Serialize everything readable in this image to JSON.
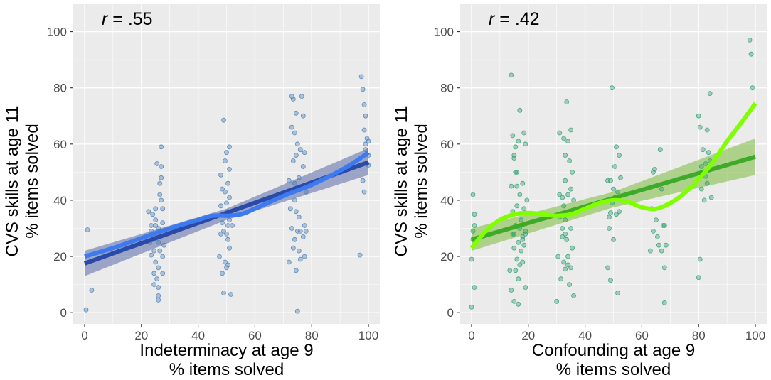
{
  "chart_data": [
    {
      "type": "scatter",
      "annotation": {
        "prefix": "r",
        "value": " = .55"
      },
      "xlabel": [
        "Indeterminacy at age 9",
        "% items solved"
      ],
      "ylabel": [
        "CVS skills at age 11",
        "% items solved"
      ],
      "xlim": [
        -4,
        104
      ],
      "ylim": [
        -4,
        110
      ],
      "xticks": [
        0,
        20,
        40,
        60,
        80,
        100
      ],
      "yticks": [
        0,
        20,
        40,
        60,
        80,
        100
      ],
      "tick_labels": {
        "x": [
          "0",
          "20",
          "40",
          "60",
          "80",
          "100"
        ],
        "y": [
          "0",
          "20",
          "40",
          "60",
          "80",
          "100"
        ]
      },
      "colors": {
        "points": "#4a7fb5",
        "linear": "#2a4aa8",
        "ribbon": "#5a6aa8",
        "loess": "#3d7af0"
      },
      "points": [
        [
          0.5,
          1
        ],
        [
          1,
          29.5
        ],
        [
          2.5,
          8
        ],
        [
          22.5,
          36
        ],
        [
          23,
          25
        ],
        [
          23.5,
          31
        ],
        [
          23.5,
          20.5
        ],
        [
          24,
          35
        ],
        [
          24.5,
          22
        ],
        [
          24.5,
          10
        ],
        [
          24.5,
          14
        ],
        [
          25,
          28
        ],
        [
          25,
          33
        ],
        [
          25,
          18
        ],
        [
          25.5,
          53
        ],
        [
          25.5,
          12
        ],
        [
          25,
          37
        ],
        [
          26,
          30
        ],
        [
          26,
          25
        ],
        [
          26,
          16
        ],
        [
          26,
          6
        ],
        [
          26.5,
          46
        ],
        [
          26.5,
          42
        ],
        [
          26.5,
          27
        ],
        [
          26.5,
          22
        ],
        [
          26,
          9
        ],
        [
          27,
          52
        ],
        [
          27,
          59
        ],
        [
          27,
          48
        ],
        [
          27,
          40
        ],
        [
          27.5,
          32
        ],
        [
          27.5,
          20
        ],
        [
          27.5,
          14
        ],
        [
          28,
          24
        ],
        [
          26,
          4.5
        ],
        [
          24,
          26
        ],
        [
          25,
          31
        ],
        [
          26.5,
          29
        ],
        [
          23.5,
          29
        ],
        [
          27.5,
          37
        ],
        [
          47.5,
          20
        ],
        [
          48,
          49
        ],
        [
          48,
          38
        ],
        [
          48.5,
          44
        ],
        [
          48.5,
          32
        ],
        [
          48.5,
          14
        ],
        [
          49,
          68.5
        ],
        [
          49,
          29
        ],
        [
          49,
          7
        ],
        [
          49.5,
          54
        ],
        [
          49.5,
          43
        ],
        [
          49.5,
          35
        ],
        [
          50,
          57
        ],
        [
          50,
          39
        ],
        [
          50,
          28
        ],
        [
          50,
          16
        ],
        [
          50.5,
          46
        ],
        [
          50.5,
          36
        ],
        [
          50.5,
          26
        ],
        [
          50.5,
          17
        ],
        [
          51,
          51
        ],
        [
          51,
          59
        ],
        [
          51,
          41
        ],
        [
          51,
          33
        ],
        [
          51,
          23
        ],
        [
          51.5,
          6.5
        ],
        [
          52,
          31
        ],
        [
          48,
          28
        ],
        [
          49.5,
          18
        ],
        [
          50.5,
          31
        ],
        [
          72,
          18
        ],
        [
          72,
          47
        ],
        [
          72.5,
          37
        ],
        [
          73,
          77
        ],
        [
          73,
          66
        ],
        [
          73,
          30
        ],
        [
          73.5,
          76
        ],
        [
          73.5,
          54
        ],
        [
          73.5,
          23
        ],
        [
          74,
          64
        ],
        [
          74,
          46
        ],
        [
          74,
          40
        ],
        [
          74,
          26
        ],
        [
          74.5,
          71
        ],
        [
          74.5,
          56
        ],
        [
          74.5,
          36
        ],
        [
          75,
          60
        ],
        [
          75,
          44
        ],
        [
          75,
          29
        ],
        [
          75,
          0.5
        ],
        [
          75.5,
          48
        ],
        [
          75.5,
          34
        ],
        [
          75.5,
          22
        ],
        [
          76,
          58
        ],
        [
          76,
          29
        ],
        [
          76,
          19
        ],
        [
          76.5,
          77
        ],
        [
          77,
          52
        ],
        [
          77,
          70
        ],
        [
          77,
          27
        ],
        [
          77.5,
          57
        ],
        [
          77.5,
          31
        ],
        [
          77.5,
          20
        ],
        [
          78,
          43
        ],
        [
          78,
          29
        ],
        [
          74.5,
          15
        ],
        [
          97,
          20.5
        ],
        [
          97.5,
          84
        ],
        [
          98,
          79.5
        ],
        [
          98,
          47
        ],
        [
          98.5,
          74
        ],
        [
          98.5,
          65
        ],
        [
          98.5,
          43
        ],
        [
          99,
          70
        ],
        [
          99,
          58
        ],
        [
          99.5,
          62
        ],
        [
          99.5,
          53
        ],
        [
          100,
          56
        ],
        [
          100,
          61
        ],
        [
          100,
          52.5
        ],
        [
          99,
          60
        ]
      ],
      "linear_fit": [
        [
          0,
          17.5
        ],
        [
          100,
          53.5
        ]
      ],
      "ribbon_upper": [
        [
          0,
          22
        ],
        [
          50,
          37
        ],
        [
          100,
          58.5
        ]
      ],
      "ribbon_lower": [
        [
          0,
          13
        ],
        [
          50,
          33
        ],
        [
          100,
          49
        ]
      ],
      "loess_fit": [
        [
          0,
          20
        ],
        [
          10,
          23
        ],
        [
          20,
          26.5
        ],
        [
          30,
          30
        ],
        [
          40,
          33
        ],
        [
          45,
          34.5
        ],
        [
          50,
          34.5
        ],
        [
          55,
          35
        ],
        [
          60,
          37
        ],
        [
          70,
          41.5
        ],
        [
          80,
          45.5
        ],
        [
          90,
          50.5
        ],
        [
          95,
          53.5
        ],
        [
          100,
          57
        ]
      ]
    },
    {
      "type": "scatter",
      "annotation": {
        "prefix": "r",
        "value": " = .42"
      },
      "xlabel": [
        "Confounding at age 9",
        "% items solved"
      ],
      "ylabel": [
        "CVS skills at age 11",
        "% items solved"
      ],
      "xlim": [
        -4,
        104
      ],
      "ylim": [
        -4,
        110
      ],
      "xticks": [
        0,
        20,
        40,
        60,
        80,
        100
      ],
      "yticks": [
        0,
        20,
        40,
        60,
        80,
        100
      ],
      "tick_labels": {
        "x": [
          "0",
          "20",
          "40",
          "60",
          "80",
          "100"
        ],
        "y": [
          "0",
          "20",
          "40",
          "60",
          "80",
          "100"
        ]
      },
      "colors": {
        "points": "#2e9e6e",
        "linear": "#3daa2a",
        "ribbon": "#7aba3a",
        "loess": "#7fff00"
      },
      "points": [
        [
          0,
          2
        ],
        [
          0,
          19
        ],
        [
          0.5,
          29
        ],
        [
          0.5,
          42
        ],
        [
          1,
          9
        ],
        [
          1,
          31
        ],
        [
          1,
          35
        ],
        [
          0.5,
          26
        ],
        [
          13.5,
          15
        ],
        [
          14,
          45
        ],
        [
          14,
          8
        ],
        [
          14,
          84.5
        ],
        [
          14.5,
          63
        ],
        [
          14.5,
          36
        ],
        [
          15,
          23
        ],
        [
          15,
          55
        ],
        [
          15,
          28
        ],
        [
          15,
          4
        ],
        [
          15.5,
          59
        ],
        [
          15.5,
          50
        ],
        [
          15.5,
          31
        ],
        [
          15.5,
          15
        ],
        [
          16,
          45
        ],
        [
          16,
          38
        ],
        [
          16,
          19
        ],
        [
          16,
          50
        ],
        [
          16.5,
          61
        ],
        [
          16.5,
          25
        ],
        [
          16.5,
          12
        ],
        [
          16.5,
          3
        ],
        [
          17,
          72
        ],
        [
          17,
          42
        ],
        [
          17,
          30
        ],
        [
          17.5,
          22
        ],
        [
          17.5,
          33
        ],
        [
          18,
          46
        ],
        [
          18,
          27
        ],
        [
          18,
          18
        ],
        [
          18.5,
          64
        ],
        [
          18.5,
          37
        ],
        [
          18.5,
          24
        ],
        [
          19,
          60
        ],
        [
          19,
          29
        ],
        [
          19,
          9
        ],
        [
          19.5,
          40
        ],
        [
          19,
          28
        ],
        [
          18,
          26
        ],
        [
          17,
          17
        ],
        [
          15,
          56
        ],
        [
          14.5,
          28
        ],
        [
          30,
          4
        ],
        [
          30.5,
          20
        ],
        [
          31,
          64
        ],
        [
          31,
          34
        ],
        [
          31,
          42
        ],
        [
          31.5,
          12
        ],
        [
          32,
          30
        ],
        [
          32,
          27
        ],
        [
          32.5,
          62
        ],
        [
          32.5,
          38
        ],
        [
          32.5,
          18
        ],
        [
          33,
          56
        ],
        [
          33,
          47
        ],
        [
          33,
          33
        ],
        [
          33,
          15.5
        ],
        [
          33.5,
          75
        ],
        [
          33.5,
          26
        ],
        [
          34,
          61
        ],
        [
          34,
          42
        ],
        [
          34,
          17
        ],
        [
          34.5,
          54
        ],
        [
          34.5,
          36
        ],
        [
          34.5,
          10
        ],
        [
          35,
          65
        ],
        [
          35,
          44
        ],
        [
          35,
          30
        ],
        [
          35,
          16
        ],
        [
          35.5,
          50
        ],
        [
          35.5,
          23
        ],
        [
          36,
          40
        ],
        [
          36,
          6
        ],
        [
          34,
          20
        ],
        [
          32,
          41
        ],
        [
          33,
          28
        ],
        [
          48,
          47
        ],
        [
          48,
          16
        ],
        [
          48.5,
          34
        ],
        [
          48.5,
          30
        ],
        [
          49,
          47
        ],
        [
          49,
          11.5
        ],
        [
          49.5,
          80
        ],
        [
          49.5,
          39
        ],
        [
          50,
          44
        ],
        [
          50,
          26
        ],
        [
          50.5,
          52
        ],
        [
          50.5,
          41
        ],
        [
          51,
          59
        ],
        [
          51,
          35
        ],
        [
          51.5,
          43
        ],
        [
          51.5,
          7
        ],
        [
          52,
          56
        ],
        [
          52,
          36
        ],
        [
          52.5,
          48
        ],
        [
          49,
          35.5
        ],
        [
          63,
          22
        ],
        [
          63.5,
          37
        ],
        [
          64,
          29
        ],
        [
          64,
          50
        ],
        [
          64.5,
          51
        ],
        [
          65,
          33
        ],
        [
          65.5,
          27
        ],
        [
          66,
          24
        ],
        [
          66.5,
          58
        ],
        [
          67,
          44
        ],
        [
          67,
          22
        ],
        [
          67.5,
          31
        ],
        [
          68,
          3.5
        ],
        [
          68,
          16
        ],
        [
          68.5,
          24
        ],
        [
          68,
          31
        ],
        [
          80,
          12.5
        ],
        [
          80,
          70
        ],
        [
          80.5,
          66
        ],
        [
          80.5,
          19
        ],
        [
          81,
          44
        ],
        [
          81,
          52
        ],
        [
          81.5,
          58
        ],
        [
          82,
          40
        ],
        [
          82.5,
          53
        ],
        [
          83,
          65
        ],
        [
          83,
          46
        ],
        [
          83.5,
          57
        ],
        [
          84,
          54
        ],
        [
          84,
          78
        ],
        [
          84.5,
          41
        ],
        [
          98,
          97
        ],
        [
          98.5,
          92
        ],
        [
          99,
          80
        ],
        [
          82.5,
          48.5
        ]
      ],
      "linear_fit": [
        [
          0,
          26
        ],
        [
          100,
          55.5
        ]
      ],
      "ribbon_upper": [
        [
          0,
          30
        ],
        [
          50,
          43
        ],
        [
          100,
          62
        ]
      ],
      "ribbon_lower": [
        [
          0,
          22
        ],
        [
          50,
          37.5
        ],
        [
          100,
          49
        ]
      ],
      "loess_fit": [
        [
          0,
          23
        ],
        [
          5,
          29
        ],
        [
          10,
          33
        ],
        [
          15,
          35
        ],
        [
          20,
          35.5
        ],
        [
          25,
          35
        ],
        [
          30,
          34.5
        ],
        [
          35,
          35
        ],
        [
          40,
          37
        ],
        [
          45,
          39
        ],
        [
          50,
          40
        ],
        [
          55,
          39.5
        ],
        [
          60,
          37.5
        ],
        [
          65,
          37
        ],
        [
          70,
          39
        ],
        [
          75,
          42.5
        ],
        [
          80,
          47.5
        ],
        [
          85,
          53.5
        ],
        [
          90,
          61
        ],
        [
          95,
          67.5
        ],
        [
          100,
          74.5
        ]
      ]
    }
  ]
}
